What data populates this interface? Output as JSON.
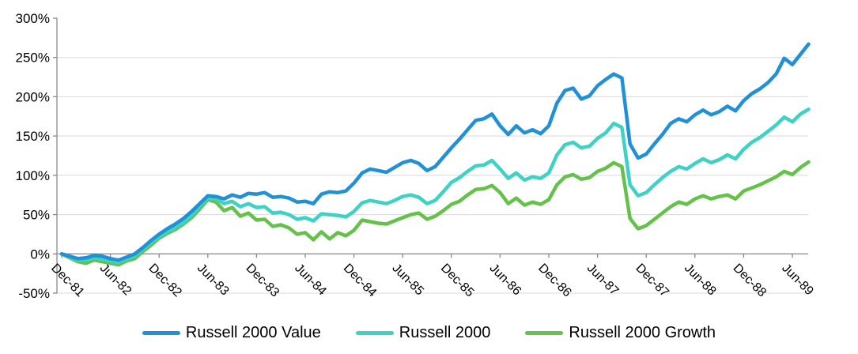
{
  "colors": {
    "background": "#FFFFFF",
    "gridline": "#D9D9D9",
    "axis": "#898989",
    "label_text": "#000000",
    "series_value_blue": "#2191D6",
    "series_r2000_cyan": "#3ED1C5",
    "series_growth_green": "#64C24A"
  },
  "chart_data": {
    "type": "line",
    "title": "",
    "xlabel": "",
    "ylabel": "",
    "y_tick_format": "percent",
    "ylim": [
      -50,
      300
    ],
    "y_tick_step": 50,
    "y_tick_labels": [
      "-50%",
      "0%",
      "50%",
      "100%",
      "150%",
      "200%",
      "250%",
      "300%"
    ],
    "grid": "horizontal",
    "legend_position": "bottom",
    "x_tick_labels": [
      "Dec-81",
      "Jun-82",
      "Dec-82",
      "Jun-83",
      "Dec-83",
      "Jun-84",
      "Dec-84",
      "Jun-85",
      "Dec-85",
      "Jun-86",
      "Dec-86",
      "Jun-87",
      "Dec-87",
      "Jun-88",
      "Dec-88",
      "Jun-89"
    ],
    "months": [
      "Dec-81",
      "Jan-82",
      "Feb-82",
      "Mar-82",
      "Apr-82",
      "May-82",
      "Jun-82",
      "Jul-82",
      "Aug-82",
      "Sep-82",
      "Oct-82",
      "Nov-82",
      "Dec-82",
      "Jan-83",
      "Feb-83",
      "Mar-83",
      "Apr-83",
      "May-83",
      "Jun-83",
      "Jul-83",
      "Aug-83",
      "Sep-83",
      "Oct-83",
      "Nov-83",
      "Dec-83",
      "Jan-84",
      "Feb-84",
      "Mar-84",
      "Apr-84",
      "May-84",
      "Jun-84",
      "Jul-84",
      "Aug-84",
      "Sep-84",
      "Oct-84",
      "Nov-84",
      "Dec-84",
      "Jan-85",
      "Feb-85",
      "Mar-85",
      "Apr-85",
      "May-85",
      "Jun-85",
      "Jul-85",
      "Aug-85",
      "Sep-85",
      "Oct-85",
      "Nov-85",
      "Dec-85",
      "Jan-86",
      "Feb-86",
      "Mar-86",
      "Apr-86",
      "May-86",
      "Jun-86",
      "Jul-86",
      "Aug-86",
      "Sep-86",
      "Oct-86",
      "Nov-86",
      "Dec-86",
      "Jan-87",
      "Feb-87",
      "Mar-87",
      "Apr-87",
      "May-87",
      "Jun-87",
      "Jul-87",
      "Aug-87",
      "Sep-87",
      "Oct-87",
      "Nov-87",
      "Dec-87",
      "Jan-88",
      "Feb-88",
      "Mar-88",
      "Apr-88",
      "May-88",
      "Jun-88",
      "Jul-88",
      "Aug-88",
      "Sep-88",
      "Oct-88",
      "Nov-88",
      "Dec-88",
      "Jan-89",
      "Feb-89",
      "Mar-89",
      "Apr-89",
      "May-89",
      "Jun-89",
      "Jul-89",
      "Aug-89"
    ],
    "series": [
      {
        "name": "Russell 2000 Value",
        "color": "#2191D6",
        "values": [
          0,
          -3,
          -6,
          -5,
          -2,
          -3,
          -6,
          -8,
          -4,
          0,
          8,
          17,
          25,
          32,
          38,
          45,
          54,
          64,
          74,
          73,
          70,
          75,
          72,
          77,
          76,
          78,
          72,
          73,
          71,
          66,
          67,
          64,
          76,
          79,
          78,
          80,
          90,
          103,
          108,
          106,
          104,
          110,
          116,
          119,
          115,
          106,
          111,
          123,
          135,
          146,
          158,
          170,
          172,
          178,
          163,
          152,
          163,
          154,
          158,
          153,
          163,
          192,
          208,
          211,
          197,
          201,
          214,
          222,
          229,
          224,
          140,
          122,
          127,
          140,
          152,
          166,
          172,
          168,
          177,
          183,
          177,
          181,
          188,
          182,
          195,
          204,
          210,
          218,
          229,
          249,
          241,
          254,
          267
        ]
      },
      {
        "name": "Russell 2000",
        "color": "#3ED1C5",
        "values": [
          0,
          -4,
          -8,
          -8,
          -5,
          -7,
          -9,
          -11,
          -7,
          -3,
          6,
          14,
          22,
          28,
          33,
          40,
          49,
          60,
          71,
          70,
          64,
          67,
          60,
          64,
          59,
          60,
          52,
          53,
          50,
          44,
          46,
          42,
          51,
          50,
          49,
          47,
          54,
          65,
          68,
          66,
          64,
          68,
          73,
          75,
          72,
          64,
          68,
          79,
          91,
          97,
          105,
          112,
          113,
          119,
          108,
          96,
          103,
          94,
          98,
          96,
          103,
          126,
          139,
          142,
          135,
          137,
          147,
          154,
          166,
          161,
          88,
          74,
          78,
          88,
          97,
          105,
          111,
          108,
          115,
          121,
          116,
          120,
          126,
          121,
          133,
          142,
          148,
          156,
          164,
          174,
          168,
          178,
          184
        ]
      },
      {
        "name": "Russell 2000 Growth",
        "color": "#64C24A",
        "values": [
          0,
          -5,
          -10,
          -12,
          -8,
          -10,
          -12,
          -14,
          -9,
          -6,
          3,
          11,
          20,
          26,
          31,
          38,
          46,
          57,
          69,
          66,
          55,
          59,
          48,
          52,
          43,
          44,
          35,
          37,
          33,
          25,
          27,
          18,
          28,
          19,
          27,
          23,
          30,
          43,
          41,
          39,
          38,
          42,
          46,
          50,
          52,
          44,
          48,
          55,
          63,
          67,
          75,
          82,
          83,
          87,
          78,
          64,
          71,
          62,
          66,
          63,
          69,
          88,
          98,
          101,
          95,
          97,
          105,
          109,
          116,
          111,
          45,
          32,
          36,
          44,
          52,
          60,
          66,
          63,
          70,
          74,
          70,
          73,
          75,
          70,
          80,
          84,
          88,
          93,
          98,
          105,
          101,
          110,
          117
        ]
      }
    ]
  }
}
